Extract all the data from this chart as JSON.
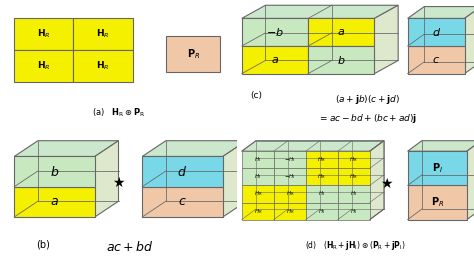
{
  "bg_color": "#ffffff",
  "yellow": "#f5f000",
  "green_light": "#c8e8c0",
  "cyan_light": "#78d8e8",
  "peach": "#f0c8a8",
  "ec": "#666666",
  "lw": 0.8,
  "label_a": "(a)   $\\mathbf{H}_{\\mathrm{R}}\\circledast\\mathbf{P}_{\\mathrm{R}}$",
  "label_b_pre": "(b)",
  "label_b_eq": "$ac+bd$",
  "label_c_pre": "(c)",
  "label_c2": "$(a+\\mathbf{j}b)(c+\\mathbf{j}d)$",
  "label_c3": "$=ac-bd+(bc+ad)\\mathbf{j}$",
  "label_d": "(d)   $(\\mathbf{H}_{\\mathrm{R}}+\\mathbf{j}\\mathbf{H}_{\\mathrm{I}})\\circledast(\\mathbf{P}_{\\mathrm{R}}+\\mathbf{j}\\mathbf{P}_{\\mathrm{I}})$"
}
